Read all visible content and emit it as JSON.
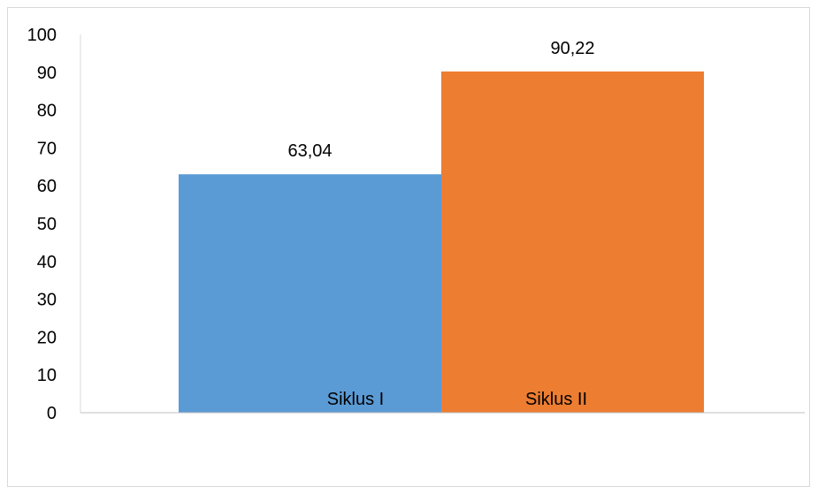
{
  "chart_data": {
    "type": "bar",
    "categories": [
      "Siklus I",
      "Siklus II"
    ],
    "values": [
      63.04,
      90.22
    ],
    "data_labels": [
      "63,04",
      "90,22"
    ],
    "colors": [
      "#5b9bd5",
      "#ed7d31"
    ],
    "y_ticks": [
      0,
      10,
      20,
      30,
      40,
      50,
      60,
      70,
      80,
      90,
      100
    ],
    "ylim": [
      0,
      100
    ],
    "title": "",
    "xlabel": "",
    "ylabel": "",
    "grid": false,
    "legend": "none"
  }
}
